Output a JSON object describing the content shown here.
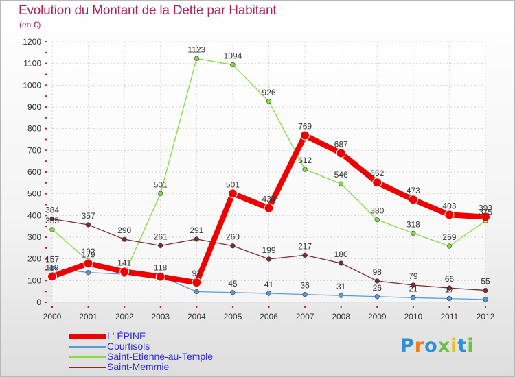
{
  "chart_data": {
    "type": "line",
    "title": "Evolution du Montant de la Dette par Habitant",
    "subtitle": "(en €)",
    "x": [
      "2000",
      "2001",
      "2002",
      "2003",
      "2004",
      "2005",
      "2006",
      "2007",
      "2008",
      "2009",
      "2010",
      "2011",
      "2012"
    ],
    "ylim": [
      0,
      1200
    ],
    "yticks": [
      0,
      100,
      200,
      300,
      400,
      500,
      600,
      700,
      800,
      900,
      1000,
      1100,
      1200
    ],
    "grid": true,
    "legend_position": "bottom-left",
    "series": [
      {
        "name": "Courtisols",
        "color": "#5b9bd5",
        "values": [
          157,
          137,
          129,
          120,
          49,
          45,
          41,
          36,
          31,
          26,
          21,
          17,
          13
        ],
        "labels": [
          "157",
          "",
          "",
          "",
          "",
          "45",
          "41",
          "36",
          "31",
          "26",
          "21",
          "17",
          ""
        ]
      },
      {
        "name": "Saint-Etienne-au-Temple",
        "color": "#80dd40",
        "values": [
          335,
          192,
          129,
          501,
          1123,
          1094,
          926,
          612,
          546,
          380,
          318,
          259,
          375
        ],
        "labels": [
          "335",
          "192",
          "",
          "501",
          "1123",
          "1094",
          "926",
          "612",
          "546",
          "380",
          "318",
          "259",
          "375"
        ]
      },
      {
        "name": "Saint-Memmie",
        "color": "#7a2c30",
        "values": [
          384,
          357,
          290,
          261,
          291,
          260,
          199,
          217,
          180,
          98,
          79,
          66,
          55
        ],
        "labels": [
          "384",
          "357",
          "290",
          "261",
          "291",
          "260",
          "199",
          "217",
          "180",
          "98",
          "79",
          "66",
          "55"
        ]
      },
      {
        "name": "L' ÉPINE",
        "color": "#ee0000",
        "values": [
          119,
          179,
          141,
          118,
          91,
          501,
          434,
          769,
          687,
          552,
          473,
          403,
          393
        ],
        "labels": [
          "119",
          "179",
          "141",
          "118",
          "91",
          "501",
          "434",
          "769",
          "687",
          "552",
          "473",
          "403",
          "393"
        ]
      }
    ]
  },
  "legend": {
    "items": [
      {
        "name": "L' ÉPINE"
      },
      {
        "name": "Courtisols"
      },
      {
        "name": "Saint-Etienne-au-Temple"
      },
      {
        "name": "Saint-Memmie"
      }
    ]
  },
  "brand": {
    "letters": [
      "P",
      "r",
      "o",
      "x",
      "i",
      "t",
      "i"
    ],
    "colors": [
      "#2d8fd6",
      "#ef7f1a",
      "#2d8fd6",
      "#6cc04a",
      "#e8c21c",
      "#2d8fd6",
      "#6cc04a"
    ]
  }
}
